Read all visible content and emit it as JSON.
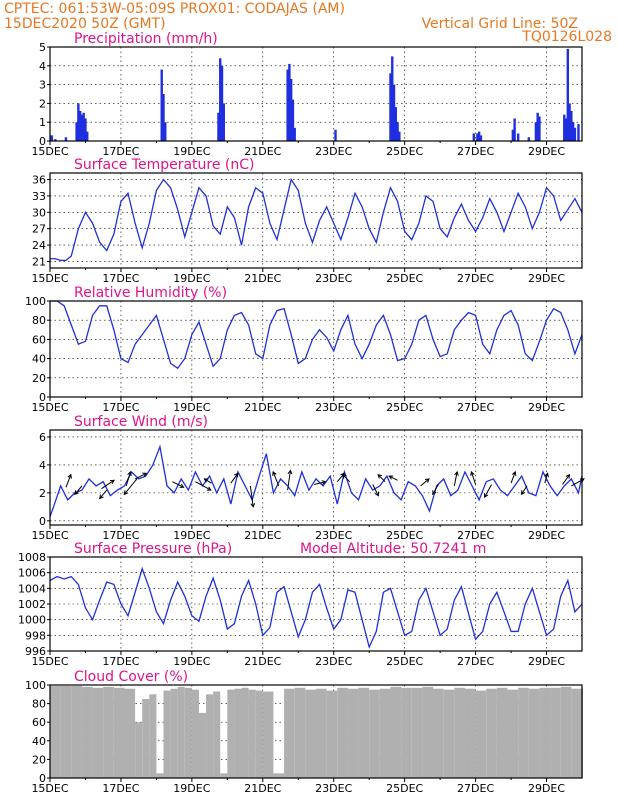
{
  "header": {
    "line1": "CPTEC:  061:53W-05:09S  PROX01: CODAJAS (AM)",
    "line2": "15DEC2020 50Z (GMT)",
    "right1": "Vertical Grid Line: 50Z",
    "right2": "TQ0126L028"
  },
  "colors": {
    "header": "#e87722",
    "title": "#e0138c",
    "series": "#1f2fe0",
    "cloud": "#b0b0b0"
  },
  "x_tick_labels": [
    "15DEC",
    "17DEC",
    "19DEC",
    "21DEC",
    "23DEC",
    "25DEC",
    "27DEC",
    "29DEC"
  ],
  "chart_data": [
    {
      "id": "precip",
      "type": "bar",
      "title": "Precipitation (mm/h)",
      "xlim": [
        0,
        15
      ],
      "ylim": [
        0,
        5
      ],
      "yticks": [
        0,
        1,
        2,
        3,
        4,
        5
      ],
      "x": [
        0.05,
        0.15,
        0.45,
        0.75,
        0.8,
        0.85,
        0.9,
        0.95,
        1.0,
        1.05,
        3.15,
        3.2,
        3.25,
        4.75,
        4.8,
        4.85,
        4.9,
        6.7,
        6.75,
        6.8,
        6.85,
        6.9,
        8.05,
        9.6,
        9.65,
        9.7,
        9.75,
        9.8,
        9.85,
        11.95,
        12.05,
        12.1,
        12.15,
        13.05,
        13.1,
        13.2,
        13.5,
        13.7,
        13.75,
        13.8,
        14.5,
        14.55,
        14.6,
        14.65,
        14.7,
        14.75,
        14.8,
        14.9
      ],
      "values": [
        0.3,
        0.1,
        0.2,
        1.0,
        2.0,
        1.6,
        1.4,
        1.5,
        1.2,
        0.5,
        3.8,
        2.5,
        1.0,
        1.5,
        4.4,
        4.0,
        2.0,
        3.8,
        4.1,
        3.3,
        2.2,
        0.7,
        0.6,
        3.6,
        4.5,
        3.0,
        1.8,
        1.0,
        0.5,
        0.4,
        0.4,
        0.5,
        0.3,
        0.6,
        1.2,
        0.4,
        0.2,
        1.0,
        1.5,
        1.3,
        1.4,
        1.2,
        4.9,
        2.0,
        1.6,
        1.0,
        0.7,
        0.9
      ]
    },
    {
      "id": "temp",
      "type": "line",
      "title": "Surface Temperature (nC)",
      "xlim": [
        0,
        15
      ],
      "ylim": [
        19.8,
        37.2
      ],
      "yticks": [
        21,
        24,
        27,
        30,
        33,
        36
      ],
      "x": [
        0,
        0.15,
        0.3,
        0.45,
        0.6,
        0.8,
        1.0,
        1.2,
        1.4,
        1.6,
        1.8,
        2.0,
        2.2,
        2.4,
        2.6,
        2.8,
        3.0,
        3.2,
        3.4,
        3.6,
        3.8,
        4.0,
        4.2,
        4.4,
        4.6,
        4.8,
        5.0,
        5.2,
        5.4,
        5.6,
        5.8,
        6.0,
        6.2,
        6.4,
        6.6,
        6.8,
        7.0,
        7.2,
        7.4,
        7.6,
        7.8,
        8.0,
        8.2,
        8.4,
        8.6,
        8.8,
        9.0,
        9.2,
        9.4,
        9.6,
        9.8,
        10.0,
        10.2,
        10.4,
        10.6,
        10.8,
        11.0,
        11.2,
        11.4,
        11.6,
        11.8,
        12.0,
        12.2,
        12.4,
        12.6,
        12.8,
        13.0,
        13.2,
        13.4,
        13.6,
        13.8,
        14.0,
        14.2,
        14.4,
        14.6,
        14.8,
        15.0
      ],
      "values": [
        21.5,
        21.5,
        21.2,
        21.2,
        22.0,
        27.0,
        30.0,
        28.0,
        24.5,
        23.0,
        26.0,
        32.0,
        33.5,
        28.0,
        23.5,
        28.0,
        34.0,
        36.0,
        34.5,
        30.5,
        25.5,
        30.0,
        34.5,
        33.0,
        27.5,
        26.0,
        31.0,
        29.0,
        24.0,
        31.0,
        34.5,
        33.5,
        28.0,
        25.0,
        30.5,
        36.0,
        34.0,
        28.0,
        24.5,
        28.5,
        31.0,
        28.0,
        25.0,
        29.0,
        33.5,
        31.0,
        27.0,
        24.5,
        30.0,
        34.5,
        32.0,
        26.5,
        25.0,
        28.0,
        33.0,
        32.0,
        27.0,
        25.5,
        29.0,
        31.5,
        28.5,
        26.5,
        29.0,
        32.5,
        30.0,
        26.5,
        30.0,
        33.5,
        31.0,
        27.0,
        30.0,
        34.5,
        33.0,
        28.5,
        30.5,
        32.5,
        30.0
      ]
    },
    {
      "id": "rh",
      "type": "line",
      "title": "Relative Humidity (%)",
      "xlim": [
        0,
        15
      ],
      "ylim": [
        0,
        100
      ],
      "yticks": [
        0,
        20,
        40,
        60,
        80,
        100
      ],
      "x": [
        0,
        0.2,
        0.4,
        0.6,
        0.8,
        1.0,
        1.2,
        1.4,
        1.6,
        1.8,
        2.0,
        2.2,
        2.4,
        2.6,
        2.8,
        3.0,
        3.2,
        3.4,
        3.6,
        3.8,
        4.0,
        4.2,
        4.4,
        4.6,
        4.8,
        5.0,
        5.2,
        5.4,
        5.6,
        5.8,
        6.0,
        6.2,
        6.4,
        6.6,
        6.8,
        7.0,
        7.2,
        7.4,
        7.6,
        7.8,
        8.0,
        8.2,
        8.4,
        8.6,
        8.8,
        9.0,
        9.2,
        9.4,
        9.6,
        9.8,
        10.0,
        10.2,
        10.4,
        10.6,
        10.8,
        11.0,
        11.2,
        11.4,
        11.6,
        11.8,
        12.0,
        12.2,
        12.4,
        12.6,
        12.8,
        13.0,
        13.2,
        13.4,
        13.6,
        13.8,
        14.0,
        14.2,
        14.4,
        14.6,
        14.8,
        15.0
      ],
      "values": [
        100,
        100,
        95,
        75,
        55,
        58,
        85,
        95,
        95,
        70,
        40,
        36,
        55,
        65,
        75,
        85,
        60,
        35,
        30,
        40,
        65,
        78,
        55,
        32,
        40,
        70,
        85,
        88,
        75,
        45,
        40,
        75,
        90,
        92,
        65,
        35,
        40,
        60,
        70,
        62,
        48,
        70,
        85,
        55,
        40,
        55,
        75,
        85,
        65,
        38,
        40,
        55,
        80,
        85,
        60,
        42,
        45,
        70,
        80,
        88,
        85,
        55,
        45,
        70,
        85,
        90,
        75,
        45,
        38,
        58,
        80,
        92,
        88,
        70,
        45,
        65
      ]
    },
    {
      "id": "wind",
      "type": "line",
      "title": "Surface Wind (m/s)",
      "xlim": [
        0,
        15
      ],
      "ylim": [
        -0.3,
        6.5
      ],
      "yticks": [
        0,
        2,
        4,
        6
      ],
      "x": [
        0,
        0.1,
        0.3,
        0.5,
        0.7,
        0.9,
        1.1,
        1.3,
        1.5,
        1.7,
        1.9,
        2.1,
        2.3,
        2.5,
        2.7,
        2.9,
        3.1,
        3.3,
        3.5,
        3.7,
        3.9,
        4.1,
        4.3,
        4.5,
        4.7,
        4.9,
        5.1,
        5.3,
        5.5,
        5.7,
        5.9,
        6.1,
        6.3,
        6.5,
        6.7,
        6.9,
        7.1,
        7.3,
        7.5,
        7.7,
        7.9,
        8.1,
        8.3,
        8.5,
        8.7,
        8.9,
        9.1,
        9.3,
        9.5,
        9.7,
        9.9,
        10.1,
        10.3,
        10.5,
        10.7,
        10.9,
        11.1,
        11.3,
        11.5,
        11.7,
        11.9,
        12.1,
        12.3,
        12.5,
        12.7,
        12.9,
        13.1,
        13.3,
        13.5,
        13.7,
        13.9,
        14.1,
        14.3,
        14.5,
        14.7,
        14.9,
        15.0
      ],
      "values": [
        0.3,
        1.0,
        2.5,
        1.5,
        2.0,
        2.2,
        3.0,
        2.5,
        2.8,
        1.8,
        2.2,
        2.5,
        3.5,
        3.0,
        3.2,
        4.0,
        5.3,
        2.5,
        2.0,
        3.0,
        2.2,
        3.5,
        2.5,
        3.2,
        2.0,
        3.0,
        1.2,
        3.5,
        2.5,
        1.5,
        3.2,
        4.8,
        2.0,
        3.0,
        2.5,
        1.8,
        3.5,
        2.2,
        3.0,
        2.5,
        3.2,
        1.2,
        3.5,
        2.0,
        1.5,
        3.0,
        2.2,
        2.5,
        3.2,
        2.0,
        1.5,
        2.8,
        2.5,
        1.8,
        0.7,
        2.5,
        3.0,
        1.8,
        2.2,
        3.5,
        2.5,
        1.5,
        2.8,
        3.0,
        2.2,
        1.8,
        2.5,
        3.2,
        2.0,
        1.8,
        3.5,
        2.5,
        1.8,
        2.5,
        3.0,
        2.0,
        3.2
      ],
      "arrows": [
        {
          "x": 0.45,
          "y": 2.4,
          "u": 0.35,
          "v": 0.9
        },
        {
          "x": 0.9,
          "y": 2.5,
          "u": -0.5,
          "v": -0.6
        },
        {
          "x": 1.45,
          "y": 2.3,
          "u": 0.9,
          "v": 0.6
        },
        {
          "x": 1.6,
          "y": 2.2,
          "u": -0.5,
          "v": -0.6
        },
        {
          "x": 2.15,
          "y": 2.5,
          "u": 0.3,
          "v": 1.0
        },
        {
          "x": 2.4,
          "y": 3.0,
          "u": 0.8,
          "v": 0.4
        },
        {
          "x": 2.45,
          "y": 3.0,
          "u": -0.9,
          "v": -1.1
        },
        {
          "x": 3.45,
          "y": 2.8,
          "u": 0.8,
          "v": -0.4
        },
        {
          "x": 4.1,
          "y": 2.8,
          "u": 1.1,
          "v": -0.6
        },
        {
          "x": 4.55,
          "y": 2.7,
          "u": -0.5,
          "v": 0.3
        },
        {
          "x": 5.1,
          "y": 2.7,
          "u": 0.5,
          "v": 0.7
        },
        {
          "x": 5.65,
          "y": 2.5,
          "u": 0.2,
          "v": -1.5
        },
        {
          "x": 6.45,
          "y": 2.5,
          "u": -0.4,
          "v": 1.0
        },
        {
          "x": 6.7,
          "y": 2.2,
          "u": 0.2,
          "v": 1.4
        },
        {
          "x": 7.45,
          "y": 2.6,
          "u": 0.8,
          "v": 0.2
        },
        {
          "x": 8.1,
          "y": 2.8,
          "u": 0.5,
          "v": 0.6
        },
        {
          "x": 8.45,
          "y": 2.8,
          "u": -0.5,
          "v": 0.5
        },
        {
          "x": 9.1,
          "y": 2.6,
          "u": 0.4,
          "v": -0.8
        },
        {
          "x": 9.45,
          "y": 2.8,
          "u": -0.5,
          "v": 0.5
        },
        {
          "x": 9.8,
          "y": 2.9,
          "u": -0.6,
          "v": 0.3
        },
        {
          "x": 10.45,
          "y": 2.5,
          "u": 0.6,
          "v": 0.5
        },
        {
          "x": 10.95,
          "y": 2.6,
          "u": -0.4,
          "v": -0.7
        },
        {
          "x": 11.4,
          "y": 2.5,
          "u": 0.2,
          "v": 1.0
        },
        {
          "x": 12.0,
          "y": 2.6,
          "u": -0.3,
          "v": 0.9
        },
        {
          "x": 12.45,
          "y": 2.6,
          "u": -0.5,
          "v": -0.9
        },
        {
          "x": 13.0,
          "y": 2.7,
          "u": 0.3,
          "v": 0.8
        },
        {
          "x": 13.45,
          "y": 2.5,
          "u": -0.4,
          "v": -0.6
        },
        {
          "x": 13.95,
          "y": 2.7,
          "u": 0.2,
          "v": 0.7
        },
        {
          "x": 14.45,
          "y": 2.6,
          "u": 0.5,
          "v": 0.7
        },
        {
          "x": 14.7,
          "y": 2.5,
          "u": 0.9,
          "v": 0.5
        }
      ]
    },
    {
      "id": "press",
      "type": "line",
      "title": "Surface Pressure (hPa)",
      "subtitle": "Model Altitude: 50.7241 m",
      "xlim": [
        0,
        15
      ],
      "ylim": [
        996,
        1008
      ],
      "yticks": [
        996,
        998,
        1000,
        1002,
        1004,
        1006,
        1008
      ],
      "x": [
        0,
        0.2,
        0.4,
        0.6,
        0.8,
        1.0,
        1.2,
        1.4,
        1.6,
        1.8,
        2.0,
        2.2,
        2.4,
        2.6,
        2.8,
        3.0,
        3.2,
        3.4,
        3.6,
        3.8,
        4.0,
        4.2,
        4.4,
        4.6,
        4.8,
        5.0,
        5.2,
        5.4,
        5.6,
        5.8,
        6.0,
        6.2,
        6.4,
        6.6,
        6.8,
        7.0,
        7.2,
        7.4,
        7.6,
        7.8,
        8.0,
        8.2,
        8.4,
        8.6,
        8.8,
        9.0,
        9.2,
        9.4,
        9.6,
        9.8,
        10.0,
        10.2,
        10.4,
        10.6,
        10.8,
        11.0,
        11.2,
        11.4,
        11.6,
        11.8,
        12.0,
        12.2,
        12.4,
        12.6,
        12.8,
        13.0,
        13.2,
        13.4,
        13.6,
        13.8,
        14.0,
        14.2,
        14.4,
        14.6,
        14.8,
        15.0
      ],
      "values": [
        1005.0,
        1005.5,
        1005.2,
        1005.5,
        1004.5,
        1001.5,
        1000.0,
        1002.5,
        1004.8,
        1004.5,
        1002.0,
        1000.5,
        1003.5,
        1006.5,
        1004.0,
        1001.0,
        999.5,
        1002.5,
        1004.8,
        1003.0,
        1000.5,
        999.8,
        1003.0,
        1005.3,
        1002.5,
        998.8,
        999.5,
        1003.0,
        1005.0,
        1002.0,
        998.0,
        999.0,
        1003.5,
        1004.2,
        1001.0,
        997.8,
        1000.0,
        1003.5,
        1004.5,
        1001.5,
        998.8,
        1000.0,
        1003.8,
        1003.5,
        1000.0,
        996.5,
        998.5,
        1003.5,
        1004.0,
        1001.0,
        998.0,
        998.5,
        1002.5,
        1004.0,
        1001.0,
        998.0,
        998.8,
        1002.5,
        1004.2,
        1000.8,
        997.5,
        998.5,
        1002.0,
        1003.5,
        1001.0,
        998.5,
        998.5,
        1002.0,
        1004.0,
        1001.0,
        998.0,
        998.8,
        1003.0,
        1005.0,
        1001.0,
        1002.0
      ]
    },
    {
      "id": "cloud",
      "type": "area",
      "title": "Cloud Cover (%)",
      "xlim": [
        0,
        15
      ],
      "ylim": [
        0,
        100
      ],
      "yticks": [
        0,
        20,
        40,
        60,
        80,
        100
      ],
      "x": [
        0,
        0.3,
        0.6,
        0.9,
        1.2,
        1.5,
        1.8,
        2.1,
        2.4,
        2.6,
        2.8,
        3.0,
        3.2,
        3.4,
        3.6,
        3.8,
        4.0,
        4.2,
        4.4,
        4.6,
        4.8,
        5.0,
        5.2,
        5.4,
        5.6,
        5.8,
        6.0,
        6.3,
        6.6,
        6.9,
        7.2,
        7.5,
        7.8,
        8.1,
        8.4,
        8.7,
        9.0,
        9.3,
        9.6,
        9.9,
        10.2,
        10.5,
        10.8,
        11.1,
        11.4,
        11.7,
        12.0,
        12.3,
        12.6,
        12.9,
        13.2,
        13.5,
        13.8,
        14.1,
        14.4,
        14.7,
        15.0
      ],
      "values": [
        99,
        99,
        99,
        98,
        97,
        98,
        97,
        96,
        60,
        85,
        90,
        5,
        94,
        96,
        98,
        97,
        95,
        70,
        90,
        93,
        5,
        95,
        96,
        97,
        95,
        94,
        93,
        5,
        96,
        97,
        95,
        96,
        94,
        97,
        96,
        97,
        95,
        96,
        98,
        97,
        97,
        98,
        96,
        95,
        97,
        96,
        94,
        96,
        97,
        95,
        97,
        96,
        97,
        97,
        98,
        96,
        97
      ]
    }
  ]
}
